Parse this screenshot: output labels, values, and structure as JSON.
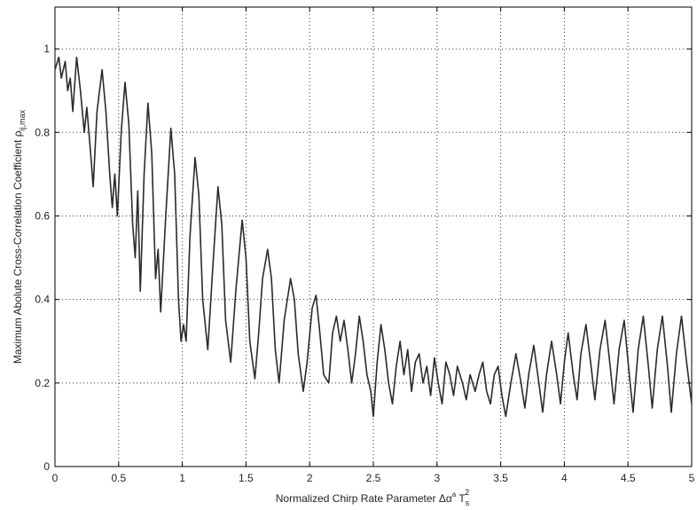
{
  "chart_data": {
    "type": "line",
    "xlabel_parts": [
      "Normalized Chirp Rate Parameter Δα",
      "a",
      " T",
      "s",
      "2"
    ],
    "ylabel_parts": [
      "Maximum Abolute Cross-Correlation Coefficient ρ",
      "ij,max"
    ],
    "x": [
      0,
      0.03,
      0.05,
      0.08,
      0.1,
      0.12,
      0.14,
      0.17,
      0.2,
      0.23,
      0.25,
      0.28,
      0.3,
      0.33,
      0.37,
      0.4,
      0.43,
      0.45,
      0.47,
      0.49,
      0.52,
      0.55,
      0.58,
      0.61,
      0.63,
      0.65,
      0.67,
      0.7,
      0.73,
      0.76,
      0.79,
      0.81,
      0.83,
      0.87,
      0.91,
      0.94,
      0.97,
      0.99,
      1.01,
      1.03,
      1.06,
      1.1,
      1.13,
      1.16,
      1.2,
      1.24,
      1.28,
      1.31,
      1.34,
      1.38,
      1.42,
      1.47,
      1.5,
      1.53,
      1.57,
      1.6,
      1.63,
      1.67,
      1.7,
      1.73,
      1.76,
      1.8,
      1.85,
      1.88,
      1.91,
      1.95,
      1.98,
      2.02,
      2.05,
      2.08,
      2.11,
      2.15,
      2.18,
      2.21,
      2.24,
      2.27,
      2.3,
      2.33,
      2.36,
      2.39,
      2.42,
      2.45,
      2.48,
      2.5,
      2.53,
      2.56,
      2.59,
      2.62,
      2.65,
      2.68,
      2.71,
      2.74,
      2.77,
      2.8,
      2.83,
      2.86,
      2.89,
      2.92,
      2.95,
      2.98,
      3.01,
      3.04,
      3.07,
      3.1,
      3.13,
      3.16,
      3.2,
      3.23,
      3.26,
      3.3,
      3.33,
      3.36,
      3.39,
      3.42,
      3.45,
      3.48,
      3.51,
      3.54,
      3.58,
      3.62,
      3.66,
      3.69,
      3.72,
      3.76,
      3.8,
      3.83,
      3.86,
      3.9,
      3.94,
      3.97,
      4,
      4.03,
      4.07,
      4.1,
      4.13,
      4.17,
      4.21,
      4.24,
      4.28,
      4.32,
      4.36,
      4.39,
      4.43,
      4.47,
      4.51,
      4.54,
      4.58,
      4.62,
      4.66,
      4.69,
      4.73,
      4.77,
      4.81,
      4.84,
      4.88,
      4.92,
      4.96,
      5
    ],
    "values": [
      0.95,
      0.98,
      0.93,
      0.97,
      0.9,
      0.93,
      0.85,
      0.98,
      0.9,
      0.8,
      0.86,
      0.75,
      0.67,
      0.85,
      0.95,
      0.85,
      0.7,
      0.62,
      0.7,
      0.6,
      0.8,
      0.92,
      0.82,
      0.58,
      0.5,
      0.66,
      0.42,
      0.7,
      0.87,
      0.75,
      0.45,
      0.52,
      0.37,
      0.6,
      0.81,
      0.7,
      0.4,
      0.3,
      0.34,
      0.3,
      0.55,
      0.74,
      0.65,
      0.4,
      0.28,
      0.48,
      0.67,
      0.58,
      0.35,
      0.25,
      0.42,
      0.59,
      0.5,
      0.3,
      0.21,
      0.32,
      0.45,
      0.52,
      0.45,
      0.28,
      0.2,
      0.35,
      0.45,
      0.4,
      0.27,
      0.18,
      0.25,
      0.38,
      0.41,
      0.32,
      0.22,
      0.2,
      0.32,
      0.36,
      0.3,
      0.35,
      0.28,
      0.2,
      0.27,
      0.36,
      0.3,
      0.22,
      0.18,
      0.12,
      0.25,
      0.34,
      0.28,
      0.2,
      0.15,
      0.24,
      0.3,
      0.22,
      0.28,
      0.18,
      0.25,
      0.27,
      0.2,
      0.24,
      0.17,
      0.26,
      0.2,
      0.15,
      0.25,
      0.22,
      0.17,
      0.24,
      0.2,
      0.16,
      0.22,
      0.18,
      0.22,
      0.25,
      0.18,
      0.15,
      0.22,
      0.24,
      0.17,
      0.12,
      0.2,
      0.27,
      0.2,
      0.14,
      0.22,
      0.29,
      0.2,
      0.13,
      0.22,
      0.3,
      0.22,
      0.15,
      0.25,
      0.32,
      0.22,
      0.16,
      0.27,
      0.34,
      0.24,
      0.16,
      0.28,
      0.35,
      0.24,
      0.15,
      0.28,
      0.35,
      0.22,
      0.13,
      0.28,
      0.36,
      0.24,
      0.14,
      0.28,
      0.36,
      0.24,
      0.13,
      0.27,
      0.36,
      0.25,
      0.15
    ],
    "color": "#2a2a2a",
    "xlim": [
      0,
      5
    ],
    "xticks": [
      0,
      0.5,
      1,
      1.5,
      2,
      2.5,
      3,
      3.5,
      4,
      4.5,
      5
    ],
    "ylim": [
      0,
      1.1
    ],
    "yticks": [
      0,
      0.2,
      0.4,
      0.6,
      0.8,
      1
    ],
    "grid": true
  }
}
